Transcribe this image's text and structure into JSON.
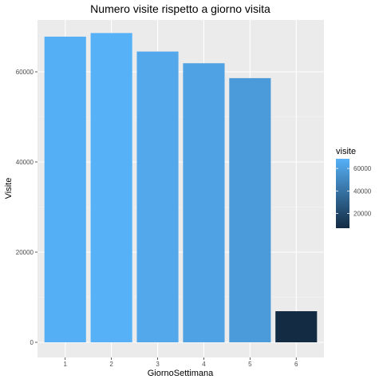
{
  "chart_data": {
    "type": "bar",
    "title": "Numero visite rispetto a giorno visita",
    "xlabel": "GiornoSettimana",
    "ylabel": "Visite",
    "categories": [
      "1",
      "2",
      "3",
      "4",
      "5",
      "6"
    ],
    "values": [
      67800,
      68600,
      64500,
      61900,
      58600,
      6900
    ],
    "ylim": [
      0,
      70000
    ],
    "yticks": [
      0,
      20000,
      40000,
      60000
    ],
    "ytick_labels": [
      "0",
      "20000",
      "40000",
      "60000"
    ],
    "grid": true,
    "legend": {
      "title": "visite",
      "position": "right",
      "ticks": [
        20000,
        40000,
        60000
      ],
      "tick_labels": [
        "20000",
        "40000",
        "60000"
      ],
      "range": [
        6900,
        68600
      ]
    },
    "colors": {
      "low": "#132b43",
      "high": "#56b1f7",
      "panel_background": "#ebebeb",
      "grid_major": "#ffffff",
      "grid_minor": "#f5f5f5"
    }
  }
}
